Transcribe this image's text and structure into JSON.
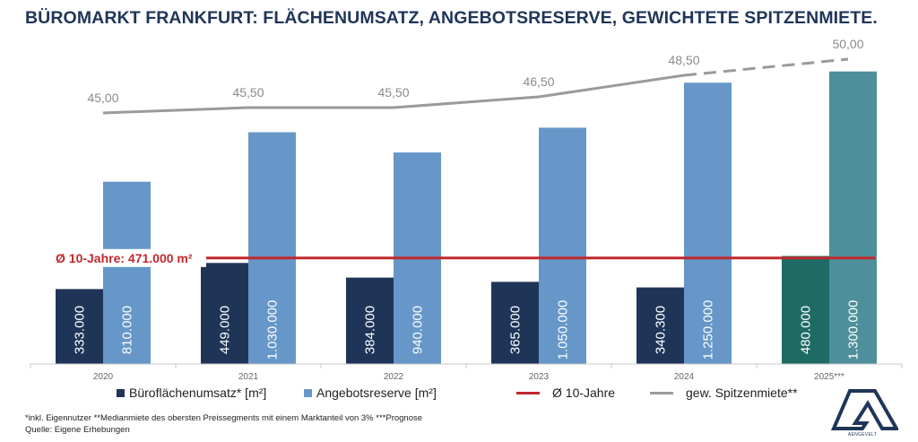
{
  "title": "BÜROMARKT FRANKFURT: FLÄCHENUMSATZ, ANGEBOTSRESERVE, GEWICHTETE SPITZENMIETE.",
  "chart_data": {
    "type": "bar",
    "categories": [
      "2020",
      "2021",
      "2022",
      "2023",
      "2024",
      "2025***"
    ],
    "series": [
      {
        "name": "Büroflächenumsatz* [m²]",
        "values": [
          333000,
          449000,
          384000,
          365000,
          340300,
          480000
        ],
        "labels": [
          "333.000",
          "449.000",
          "384.000",
          "365.000",
          "340.300",
          "480.000"
        ],
        "color": "#1f3558",
        "forecast_color": "#1e6b66"
      },
      {
        "name": "Angebotsreserve [m²]",
        "values": [
          810000,
          1030000,
          940000,
          1050000,
          1250000,
          1300000
        ],
        "labels": [
          "810.000",
          "1.030.000",
          "940.000",
          "1.050.000",
          "1.250.000",
          "1.300.000"
        ],
        "color": "#6697c8",
        "forecast_color": "#4d8f9b"
      },
      {
        "name": "gew. Spitzenmiete**",
        "type": "line",
        "values": [
          45.0,
          45.5,
          45.5,
          46.5,
          48.5,
          50.0
        ],
        "labels": [
          "45,00",
          "45,50",
          "45,50",
          "46,50",
          "48,50",
          "50,00"
        ],
        "color": "#9a9a9a",
        "dashed_from_index": 4
      }
    ],
    "average": {
      "name": "Ø 10-Jahre",
      "value": 471000,
      "label": "Ø 10-Jahre: 471.000 m²",
      "color": "#c0282d"
    },
    "forecast_index": 5
  },
  "legend": {
    "umsatz": "Büroflächenumsatz* [m²]",
    "reserve": "Angebotsreserve [m²]",
    "avg": "Ø 10-Jahre",
    "rent": "gew. Spitzenmiete**"
  },
  "footnote": {
    "line1": "*inkl. Eigennutzer **Medianmiete des obersten Preissegments mit einem Marktanteil von 3% ***Prognose",
    "line2": "Quelle: Eigene Erhebungen"
  },
  "logo": {
    "text": "AENGEVELT"
  },
  "colors": {
    "title": "#1f3558",
    "umsatz": "#1f3558",
    "reserve": "#6697c8",
    "avg_line": "#c0282d",
    "rent_line": "#9a9a9a"
  }
}
